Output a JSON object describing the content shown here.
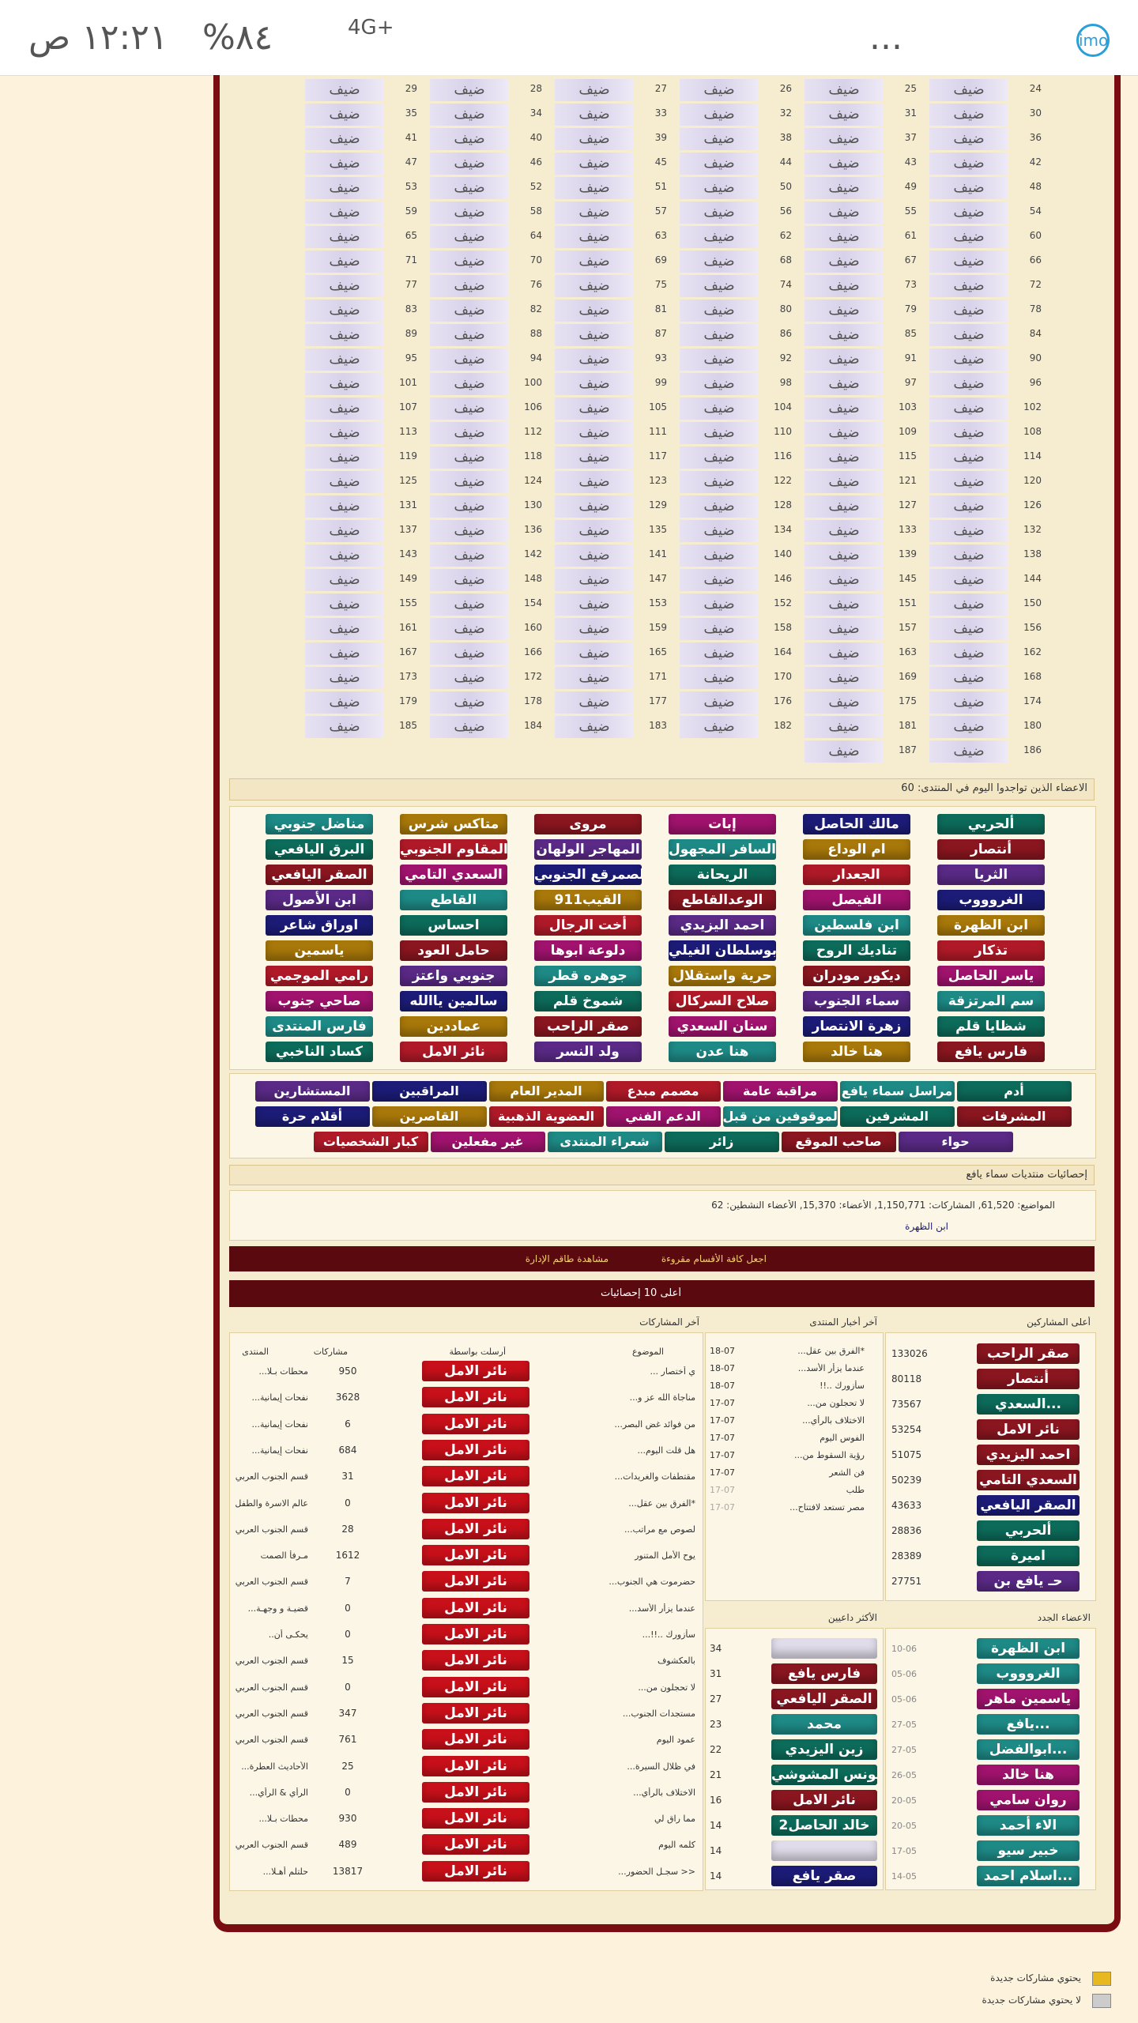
{
  "status_bar": {
    "time": "١٢:٢١ ص",
    "battery": "%٨٤",
    "network": "4G+",
    "app": "imo",
    "more": "..."
  },
  "guests": {
    "label": "ضيف",
    "numbers": [
      24,
      25,
      26,
      27,
      28,
      29,
      30,
      31,
      32,
      33,
      34,
      35,
      36,
      37,
      38,
      39,
      40,
      41,
      42,
      43,
      44,
      45,
      46,
      47,
      48,
      49,
      50,
      51,
      52,
      53,
      54,
      55,
      56,
      57,
      58,
      59,
      60,
      61,
      62,
      63,
      64,
      65,
      66,
      67,
      68,
      69,
      70,
      71,
      72,
      73,
      74,
      75,
      76,
      77,
      78,
      79,
      80,
      81,
      82,
      83,
      84,
      85,
      86,
      87,
      88,
      89,
      90,
      91,
      92,
      93,
      94,
      95,
      96,
      97,
      98,
      99,
      100,
      101,
      102,
      103,
      104,
      105,
      106,
      107,
      108,
      109,
      110,
      111,
      112,
      113,
      114,
      115,
      116,
      117,
      118,
      119,
      120,
      121,
      122,
      123,
      124,
      125,
      126,
      127,
      128,
      129,
      130,
      131,
      132,
      133,
      134,
      135,
      136,
      137,
      138,
      139,
      140,
      141,
      142,
      143,
      144,
      145,
      146,
      147,
      148,
      149,
      150,
      151,
      152,
      153,
      154,
      155,
      156,
      157,
      158,
      159,
      160,
      161,
      162,
      163,
      164,
      165,
      166,
      167,
      168,
      169,
      170,
      171,
      172,
      173,
      174,
      175,
      176,
      177,
      178,
      179,
      180,
      181,
      182,
      183,
      184,
      185,
      186,
      187
    ]
  },
  "online": {
    "title": "الاعضاء الذين تواجدوا اليوم في المنتدى: 60",
    "members": [
      [
        "ألحربي",
        "مالك الحاصل",
        "إبات",
        "مروى",
        "متاكس شرس",
        "مناضل جنوبي"
      ],
      [
        "أنتصار",
        "ام الوداع",
        "السافر المجهول",
        "المهاجر الولهان",
        "المقاوم الجنوبي",
        "البرق اليافعي"
      ],
      [
        "الثريا",
        "الجعدار",
        "الريحانة",
        "الصمرقع الجنوبي",
        "السعدي التامي",
        "الصقر اليافعي"
      ],
      [
        "الغروووب",
        "الفيصل",
        "الوعدالقاطع",
        "القيب911",
        "القاطع",
        "ابن الأصول"
      ],
      [
        "ابن الظهرة",
        "ابن فلسطين",
        "احمد اليزيدي",
        "أخت الرجال",
        "احساس",
        "اوراق شاعر"
      ],
      [
        "تذكار",
        "تناديك الروح",
        "بوسلطان الغيلي",
        "دلوعة ابوها",
        "حامل العود",
        "ياسمين"
      ],
      [
        "ياسر الحاصل",
        "ديكور مودران",
        "حرية واستقلال",
        "جوهره قطر",
        "جنوبي واعتز",
        "رامي الموجمي"
      ],
      [
        "سم المرتزقة",
        "سماء الجنوب",
        "صلاح السركال",
        "شموخ قلم",
        "سالمين ياالله",
        "صاحي جنوب"
      ],
      [
        "شظايا قلم",
        "زهرة الانتصار",
        "سنان السعدي",
        "صقر الراحب",
        "عماددين",
        "فارس المنتدى"
      ],
      [
        "فارس يافع",
        "هنا خالد",
        "هنا عدن",
        "ولد النسر",
        "نائر الامل",
        "كساد الناخبي"
      ]
    ]
  },
  "groups": [
    "أدم",
    "مراسل سماء يافع",
    "مراقبة عامة",
    "مصمم مبدع",
    "المدير العام",
    "المراقبين",
    "المستشارين",
    "المشرفات",
    "المشرفين",
    "الموقوفين من قبل",
    "الدعم الفني",
    "العضوية الذهبية",
    "القاصرين",
    "أقلام حرة",
    "حواء",
    "صاحب الموقع",
    "زائر",
    "شعراء المنتدى",
    "غير مفعلين",
    "كبار الشخصيات"
  ],
  "stats": {
    "title": "إحصائيات منتديات سماء يافع",
    "summary": "المواضيع: 61,520, المشاركات: 1,150,771, الأعضاء: 15,370, الأعضاء النشطين: 62",
    "last_member": "ابن الظهرة"
  },
  "actions": [
    "اجعل كافة الأقسام مقروءة",
    "مشاهدة طاقم الإدارة"
  ],
  "top10": {
    "title": "أعلى 10 إحصائيات",
    "top_posters": {
      "title": "أعلى المشاركين",
      "rows": [
        {
          "name": "صقر الراحب",
          "count": 133026
        },
        {
          "name": "أنتصار",
          "count": 80118
        },
        {
          "name": "السعدي...",
          "count": 73567
        },
        {
          "name": "نائر الامل",
          "count": 53254
        },
        {
          "name": "احمد اليزيدي",
          "count": 51075
        },
        {
          "name": "السعدي التامي",
          "count": 50239
        },
        {
          "name": "الصقر اليافعي",
          "count": 43633
        },
        {
          "name": "ألحربي",
          "count": 28836
        },
        {
          "name": "اميرة",
          "count": 28389
        },
        {
          "name": "حـ يافع بن",
          "count": 27751
        }
      ]
    },
    "news": {
      "title": "آخر أخبار المنتدى",
      "rows": [
        {
          "title": "*الفرق بين عقل...",
          "date": "18-07"
        },
        {
          "title": "عندما يزأر الأسد...",
          "date": "18-07"
        },
        {
          "title": "سأزورك ..!!",
          "date": "18-07"
        },
        {
          "title": "لا تحجلون من...",
          "date": "17-07"
        },
        {
          "title": "الاختلاف بالرأي...",
          "date": "17-07"
        },
        {
          "title": "الفوس اليوم",
          "date": "17-07"
        },
        {
          "title": "رؤية السقوط من...",
          "date": "17-07"
        },
        {
          "title": "فن الشعر",
          "date": "17-07"
        },
        {
          "title": "طلب",
          "date": "17-07"
        },
        {
          "title": "مصر تستعد لافتتاح...",
          "date": "17-07"
        }
      ]
    },
    "last_posts": {
      "title": "آخر المشاركات",
      "headers": [
        "الموضوع",
        "أرسلت بواسطة",
        "مشاركات",
        "المنتدى"
      ],
      "rows": [
        {
          "topic": "ي أختصار ...",
          "poster": "نائر الامل",
          "replies": 950,
          "forum": "محطات بـلا..."
        },
        {
          "topic": "مناجاة الله عز و...",
          "poster": "نائر الامل",
          "replies": 3628,
          "forum": "نفحات إيمانية..."
        },
        {
          "topic": "من فوائد غض البصر...",
          "poster": "نائر الامل",
          "replies": 6,
          "forum": "نفحات إيمانية..."
        },
        {
          "topic": "هل قلت اليوم...",
          "poster": "نائر الامل",
          "replies": 684,
          "forum": "نفحات إيمانية..."
        },
        {
          "topic": "مقتطفات والغريدات...",
          "poster": "نائر الامل",
          "replies": 31,
          "forum": "قسم الجنوب العربي"
        },
        {
          "topic": "*الفرق بين عقل...",
          "poster": "نائر الامل",
          "replies": 0,
          "forum": "عالم الاسرة والطفل"
        },
        {
          "topic": "لصوص مع مراتب...",
          "poster": "نائر الامل",
          "replies": 28,
          "forum": "قسم الجنوب العربي"
        },
        {
          "topic": "يوح الأمل المتنور",
          "poster": "نائر الامل",
          "replies": 1612,
          "forum": "مـرفأ الصمت"
        },
        {
          "topic": "حضرموت هي الجنوب...",
          "poster": "نائر الامل",
          "replies": 7,
          "forum": "قسم الجنوب العربي"
        },
        {
          "topic": "عندما يزأر الأسد...",
          "poster": "نائر الامل",
          "replies": 0,
          "forum": "قضيـة و وجهـة..."
        },
        {
          "topic": "سأزورك ..!!...",
          "poster": "نائر الامل",
          "replies": 0,
          "forum": "يحكـى أن.."
        },
        {
          "topic": "بالعكشوف",
          "poster": "نائر الامل",
          "replies": 15,
          "forum": "قسم الجنوب العربي"
        },
        {
          "topic": "لا تحجلون من...",
          "poster": "نائر الامل",
          "replies": 0,
          "forum": "قسم الجنوب العربي"
        },
        {
          "topic": "مستجدات الجنوب...",
          "poster": "نائر الامل",
          "replies": 347,
          "forum": "قسم الجنوب العربي"
        },
        {
          "topic": "عمود اليوم",
          "poster": "نائر الامل",
          "replies": 761,
          "forum": "قسم الجنوب العربي"
        },
        {
          "topic": "في ظلال السيرة...",
          "poster": "نائر الامل",
          "replies": 25,
          "forum": "الأحاديث العطرة..."
        },
        {
          "topic": "الاختلاف بالرأي...",
          "poster": "نائر الامل",
          "replies": 0,
          "forum": "الرأي & الرأي..."
        },
        {
          "topic": "مما راق لي",
          "poster": "نائر الامل",
          "replies": 930,
          "forum": "محطات بـلا..."
        },
        {
          "topic": "كلمه اليوم",
          "poster": "نائر الامل",
          "replies": 489,
          "forum": "قسم الجنوب العربي"
        },
        {
          "topic": "<< سجـل الحضور...",
          "poster": "نائر الامل",
          "replies": 13817,
          "forum": "حلتلم أهـلا..."
        }
      ]
    },
    "new_members": {
      "title": "الاعضاء الجدد",
      "rows": [
        {
          "name": "ابن الظهرة",
          "date": "10-06"
        },
        {
          "name": "الغروووب",
          "date": "05-06"
        },
        {
          "name": "ياسمين ماهر",
          "date": "05-06"
        },
        {
          "name": "يافع...",
          "date": "27-05"
        },
        {
          "name": "ابوالفضل...",
          "date": "27-05"
        },
        {
          "name": "هنا خالد",
          "date": "26-05"
        },
        {
          "name": "روان سامي",
          "date": "20-05"
        },
        {
          "name": "الاء أحمد",
          "date": "20-05"
        },
        {
          "name": "خبير سيو",
          "date": "17-05"
        },
        {
          "name": "اسلام احمد...",
          "date": "14-05"
        }
      ]
    },
    "top_inviters": {
      "title": "الأكثر داعيين",
      "rows": [
        {
          "name": null,
          "count": 34
        },
        {
          "name": "فارس يافع",
          "count": 31
        },
        {
          "name": "الصقر اليافعي",
          "count": 27
        },
        {
          "name": "محمد",
          "count": 23
        },
        {
          "name": "زين اليزيدي",
          "count": 22
        },
        {
          "name": "يونس المشوشي",
          "count": 21
        },
        {
          "name": "نائر الامل",
          "count": 16
        },
        {
          "name": "خالد الحاصل2",
          "count": 14
        },
        {
          "name": null,
          "count": 14
        },
        {
          "name": "صقر يافع",
          "count": 14
        }
      ]
    }
  },
  "legend": [
    "يحتوي مشاركات جديدة",
    "لا يحتوي مشاركات جديدة"
  ]
}
